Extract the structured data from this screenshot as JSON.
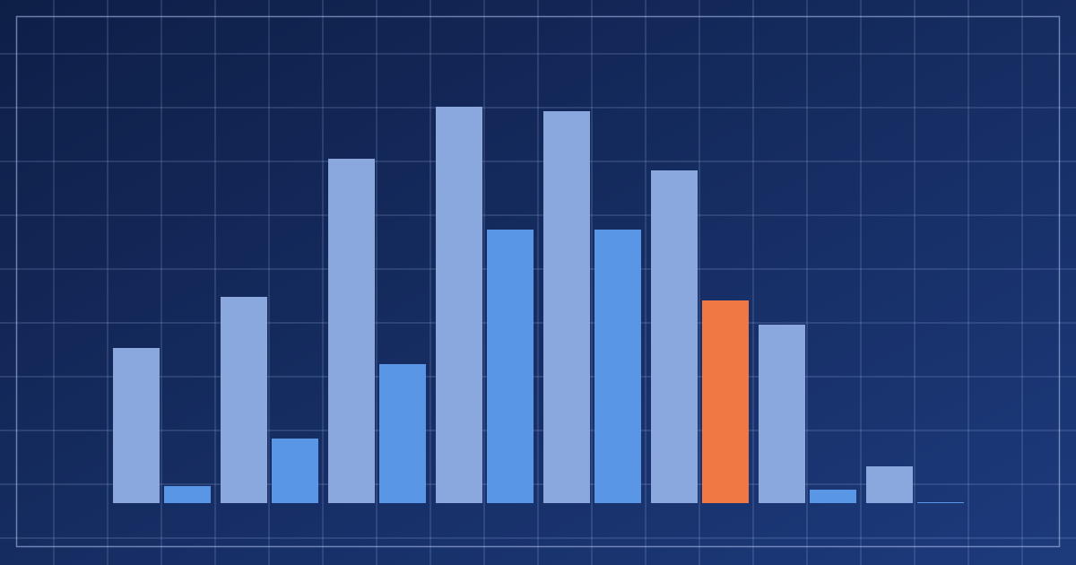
{
  "chart_data": {
    "type": "bar",
    "categories": [
      null,
      null,
      null,
      null,
      null,
      null,
      null,
      null
    ],
    "series": [
      {
        "color": "#8aa8dd",
        "values": [
          173,
          230,
          384,
          442,
          437,
          371,
          199,
          41
        ]
      },
      {
        "color": "#5a96e6",
        "colors": [
          "#5a96e6",
          "#5a96e6",
          "#5a96e6",
          "#5a96e6",
          "#5a96e6",
          "#f07844",
          "#5a96e6",
          "#5a96e6"
        ],
        "values": [
          19,
          72,
          155,
          305,
          305,
          226,
          15,
          1
        ]
      }
    ],
    "ylim": [
      0,
      450
    ]
  }
}
